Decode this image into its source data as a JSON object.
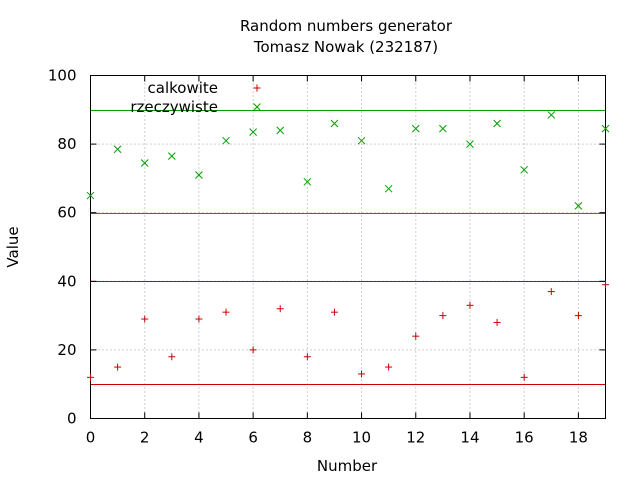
{
  "chart_data": {
    "type": "scatter",
    "title": "Random numbers generator",
    "subtitle": "Tomasz Nowak (232187)",
    "xlabel": "Number",
    "ylabel": "Value",
    "xlim": [
      0,
      19
    ],
    "ylim": [
      0,
      100
    ],
    "xticks": [
      0,
      2,
      4,
      6,
      8,
      10,
      12,
      14,
      16,
      18
    ],
    "yticks": [
      0,
      20,
      40,
      60,
      80,
      100
    ],
    "grid": true,
    "legend_position": "top-left",
    "x": [
      0,
      1,
      2,
      3,
      4,
      5,
      6,
      7,
      8,
      9,
      10,
      11,
      12,
      13,
      14,
      15,
      16,
      17,
      18,
      19
    ],
    "series": [
      {
        "name": "calkowite",
        "marker": "+",
        "color": "#cc0000",
        "values": [
          12,
          15,
          29,
          18,
          29,
          31,
          20,
          32,
          18,
          31,
          13,
          15,
          24,
          30,
          33,
          28,
          12,
          37,
          30,
          39
        ]
      },
      {
        "name": "rzeczywiste",
        "marker": "x",
        "color": "#00a000",
        "values": [
          65,
          78.5,
          74.5,
          76.5,
          71,
          81,
          83.5,
          84,
          69,
          86,
          81,
          67,
          84.5,
          84.5,
          80,
          86,
          72.5,
          88.5,
          62,
          84.5
        ]
      }
    ],
    "reference_lines": [
      {
        "y": 10,
        "color": "#cc0000"
      },
      {
        "y": 40,
        "color": "#cc0000"
      },
      {
        "y": 60,
        "color": "#00a000"
      },
      {
        "y": 90,
        "color": "#00a000"
      }
    ]
  }
}
